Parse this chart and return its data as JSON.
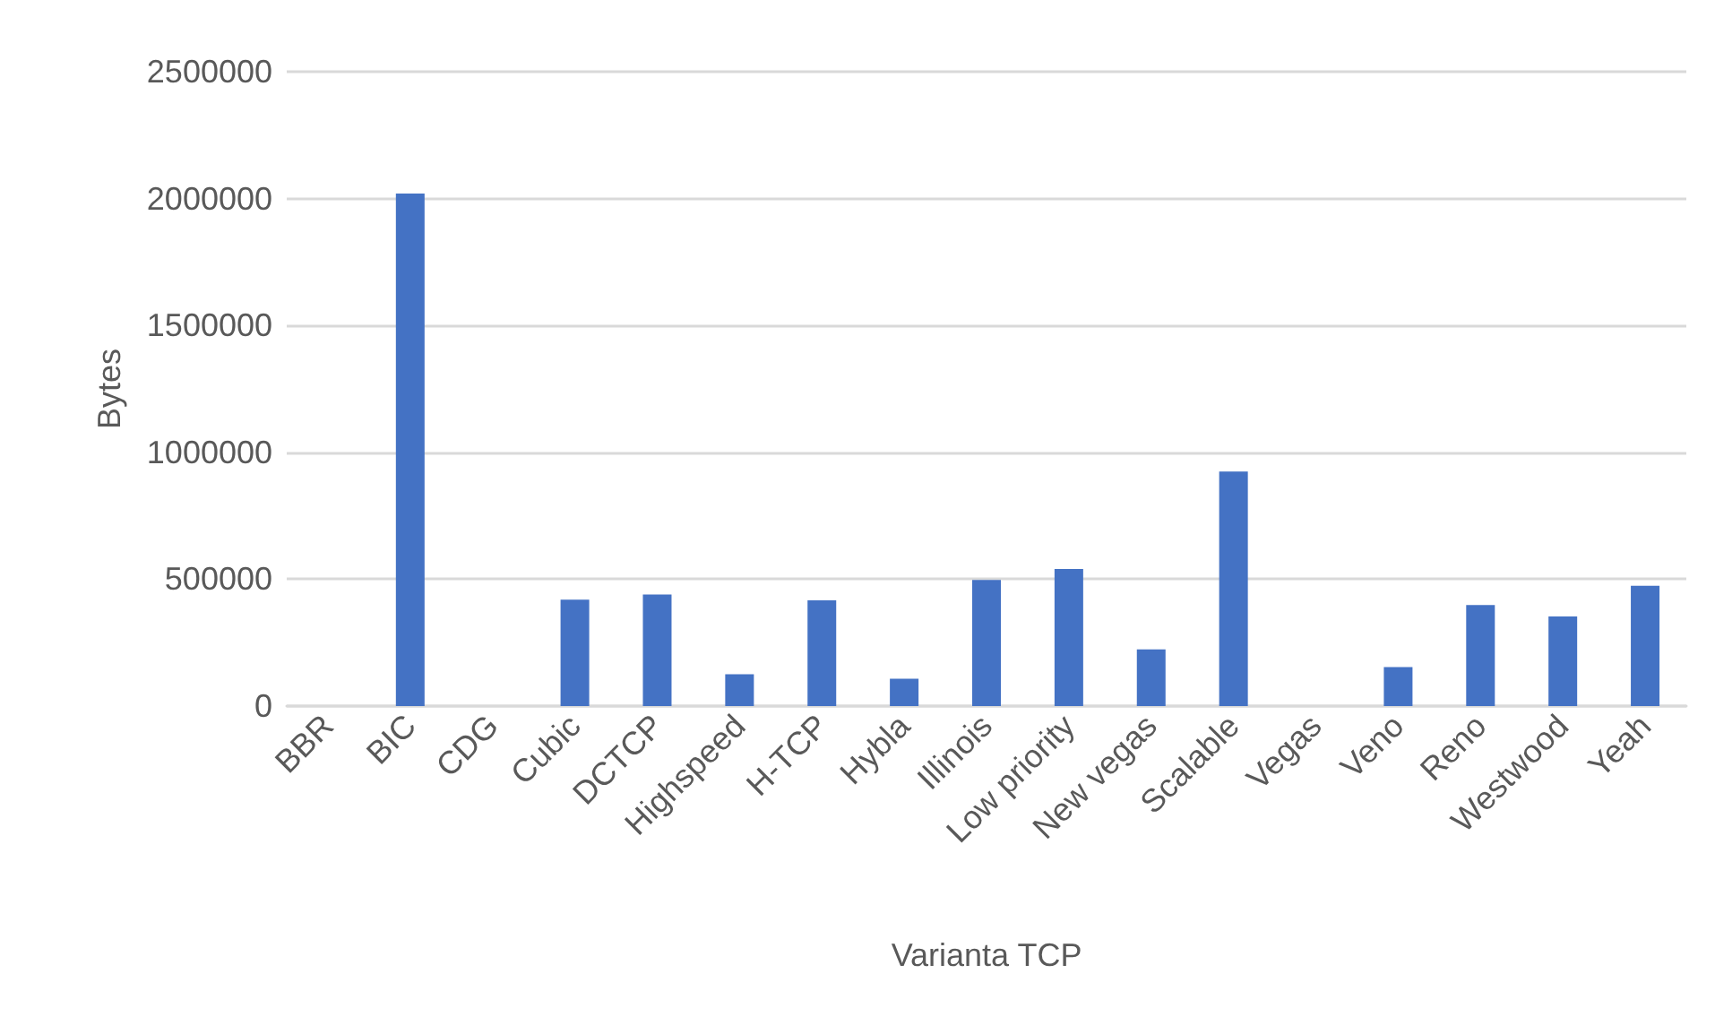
{
  "chart_data": {
    "type": "bar",
    "xlabel": "Varianta TCP",
    "ylabel": "Bytes",
    "categories": [
      "BBR",
      "BIC",
      "CDG",
      "Cubic",
      "DCTCP",
      "Highspeed",
      "H-TCP",
      "Hybla",
      "Illinois",
      "Low priority",
      "New vegas",
      "Scalable",
      "Vegas",
      "Veno",
      "Reno",
      "Westwood",
      "Yeah"
    ],
    "values": [
      0,
      2020000,
      0,
      419000,
      440000,
      125000,
      417000,
      108000,
      497000,
      540000,
      223000,
      924000,
      0,
      154000,
      398000,
      353000,
      474000
    ],
    "color": "#4472c4",
    "ylim": [
      0,
      2500000
    ],
    "yticks": [
      0,
      500000,
      1000000,
      1500000,
      2000000,
      2500000
    ],
    "grid": "y"
  }
}
